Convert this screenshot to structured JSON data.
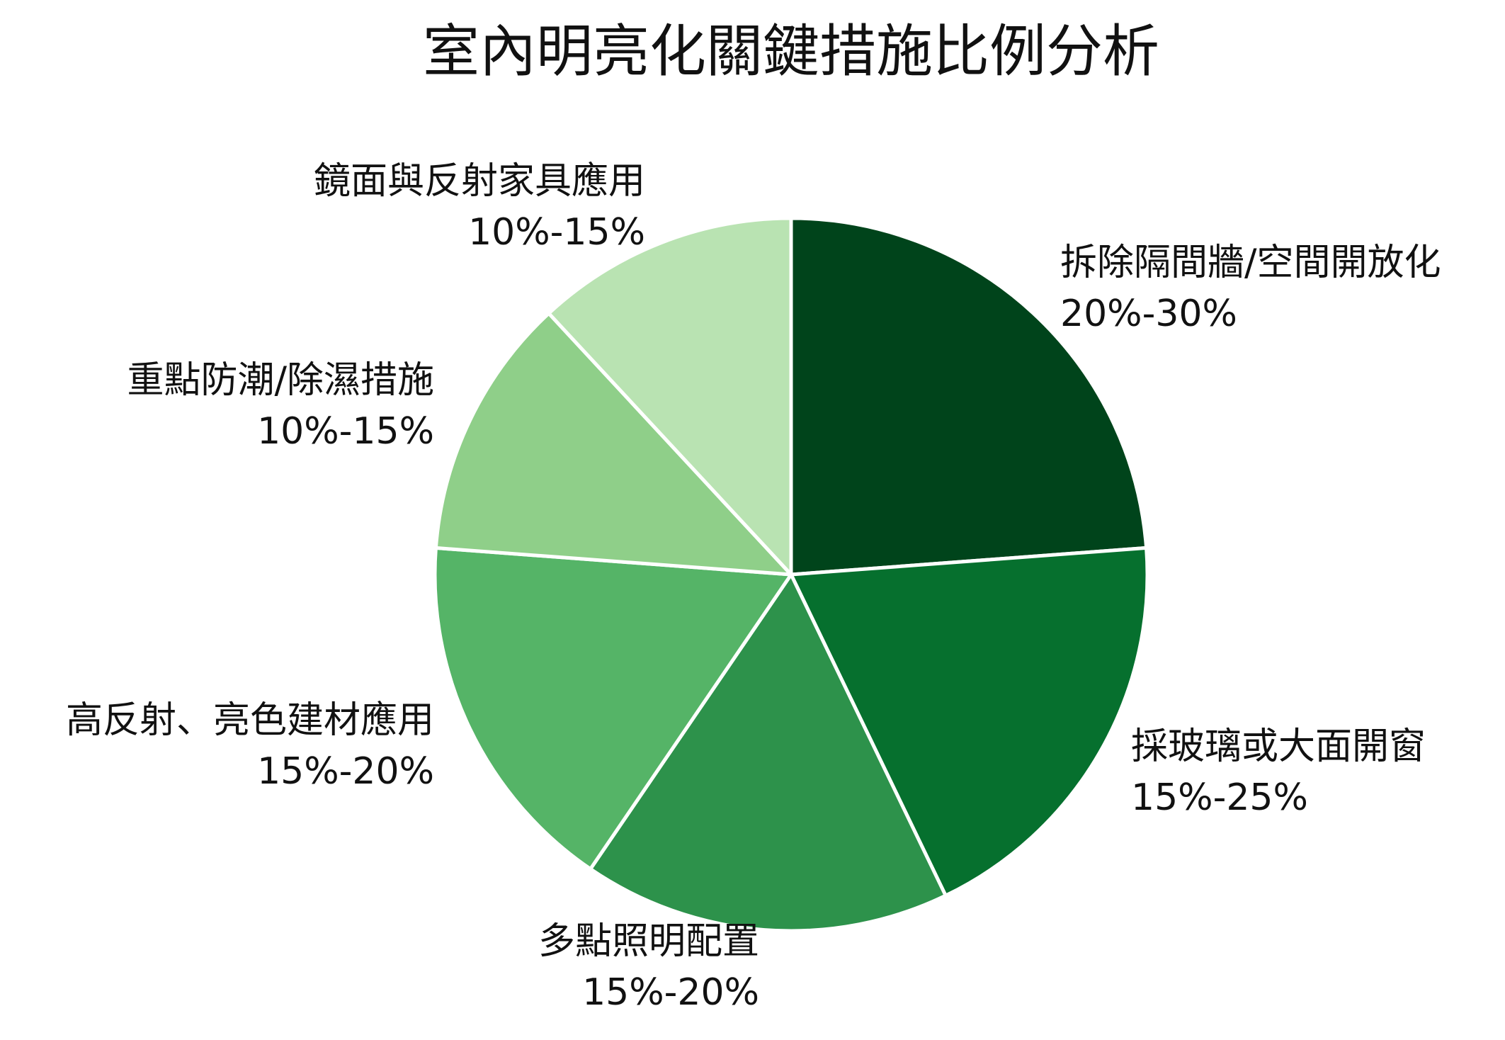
{
  "chart_data": {
    "type": "pie",
    "title": "室內明亮化關鍵措施比例分析",
    "slices": [
      {
        "label": "拆除隔間牆/空間開放化",
        "value": 25,
        "range_label": "20%-30%",
        "color": "#00441b"
      },
      {
        "label": "採玻璃或大面開窗",
        "value": 20,
        "range_label": "15%-25%",
        "color": "#06702e"
      },
      {
        "label": "多點照明配置",
        "value": 17.5,
        "range_label": "15%-20%",
        "color": "#2d924b"
      },
      {
        "label": "高反射、亮色建材應用",
        "value": 17.5,
        "range_label": "15%-20%",
        "color": "#55b467"
      },
      {
        "label": "重點防潮/除濕措施",
        "value": 12.5,
        "range_label": "10%-15%",
        "color": "#8fcf89"
      },
      {
        "label": "鏡面與反射家具應用",
        "value": 12.5,
        "range_label": "10%-15%",
        "color": "#b9e3b2"
      }
    ],
    "start_angle": "12 o'clock",
    "direction": "clockwise",
    "legend": "none"
  }
}
